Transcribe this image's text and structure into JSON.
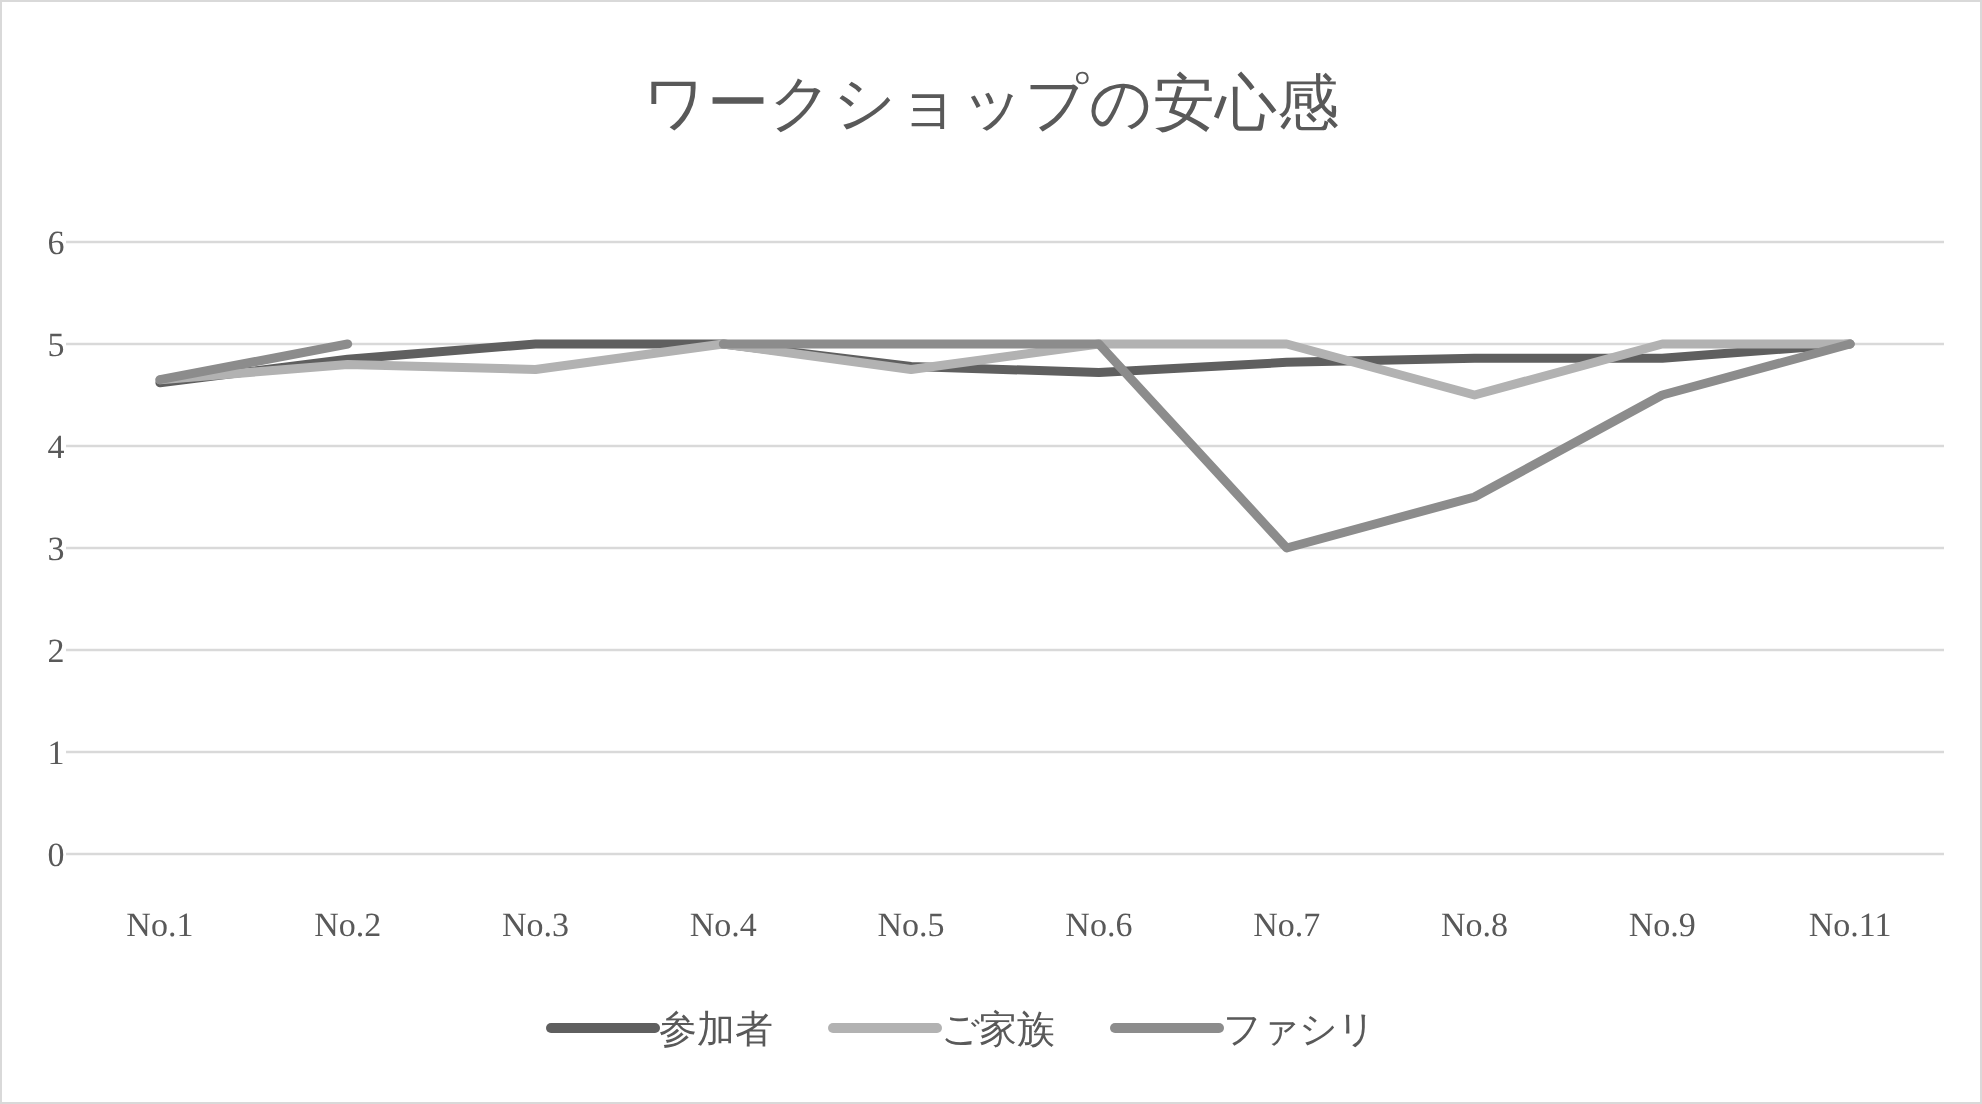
{
  "chart_data": {
    "type": "line",
    "title": "ワークショップの安心感",
    "categories": [
      "No.1",
      "No.2",
      "No.3",
      "No.4",
      "No.5",
      "No.6",
      "No.7",
      "No.8",
      "No.9",
      "No.11"
    ],
    "series": [
      {
        "name": "参加者",
        "color": "#5f5f5f",
        "values": [
          4.62,
          4.85,
          5,
          5,
          4.78,
          4.72,
          4.82,
          4.86,
          4.86,
          5
        ]
      },
      {
        "name": "ご家族",
        "color": "#b2b2b2",
        "values": [
          4.65,
          4.8,
          4.75,
          5,
          4.75,
          5,
          5,
          4.5,
          5,
          5
        ]
      },
      {
        "name": "ファシリ",
        "color": "#8c8c8c",
        "values": [
          4.65,
          5,
          null,
          5,
          5,
          5,
          3,
          3.5,
          4.5,
          5
        ]
      }
    ],
    "ylim": [
      0,
      6
    ],
    "yticks": [
      0,
      1,
      2,
      3,
      4,
      5,
      6
    ],
    "grid": "y",
    "legend": "bottom",
    "marker": "none",
    "line_style": "solid"
  }
}
